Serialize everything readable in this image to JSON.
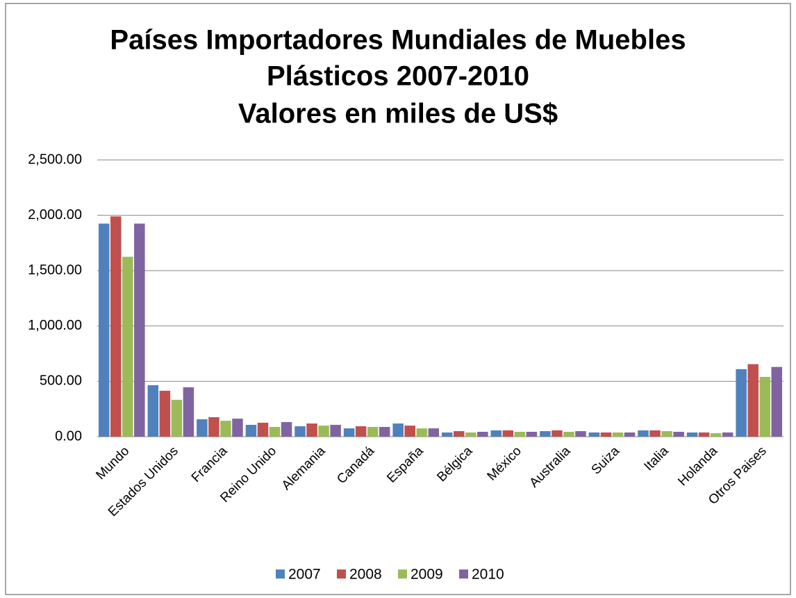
{
  "chart_data": {
    "type": "bar",
    "title": [
      "Países Importadores Mundiales de Muebles",
      "Plásticos 2007-2010",
      "Valores en miles de US$"
    ],
    "categories": [
      "Mundo",
      "Estados Unidos",
      "Francia",
      "Reino Unido",
      "Alemania",
      "Canadá",
      "España",
      "Bélgica",
      "México",
      "Australia",
      "Suiza",
      "Italia",
      "Holanda",
      "Otros Paises"
    ],
    "series": [
      {
        "name": "2007",
        "color": "#4f81bd",
        "values": [
          1925,
          465,
          157,
          107,
          94,
          75,
          119,
          38,
          57,
          50,
          38,
          57,
          38,
          610
        ]
      },
      {
        "name": "2008",
        "color": "#c0504d",
        "values": [
          1990,
          415,
          176,
          126,
          119,
          94,
          100,
          50,
          57,
          57,
          38,
          57,
          38,
          655
        ]
      },
      {
        "name": "2009",
        "color": "#9bbb59",
        "values": [
          1625,
          333,
          144,
          88,
          100,
          88,
          75,
          38,
          44,
          44,
          38,
          50,
          31,
          540
        ]
      },
      {
        "name": "2010",
        "color": "#8064a2",
        "values": [
          1925,
          446,
          163,
          132,
          107,
          88,
          75,
          44,
          44,
          50,
          38,
          44,
          38,
          630
        ]
      }
    ],
    "ylim": [
      0,
      2500
    ],
    "yticks": [
      {
        "value": 0,
        "label": "0.00"
      },
      {
        "value": 500,
        "label": "500.00"
      },
      {
        "value": 1000,
        "label": "1,000.00"
      },
      {
        "value": 1500,
        "label": "1,500.00"
      },
      {
        "value": 2000,
        "label": "2,000.00"
      },
      {
        "value": 2500,
        "label": "2,500.00"
      }
    ],
    "grid": true,
    "legend": "bottom"
  }
}
